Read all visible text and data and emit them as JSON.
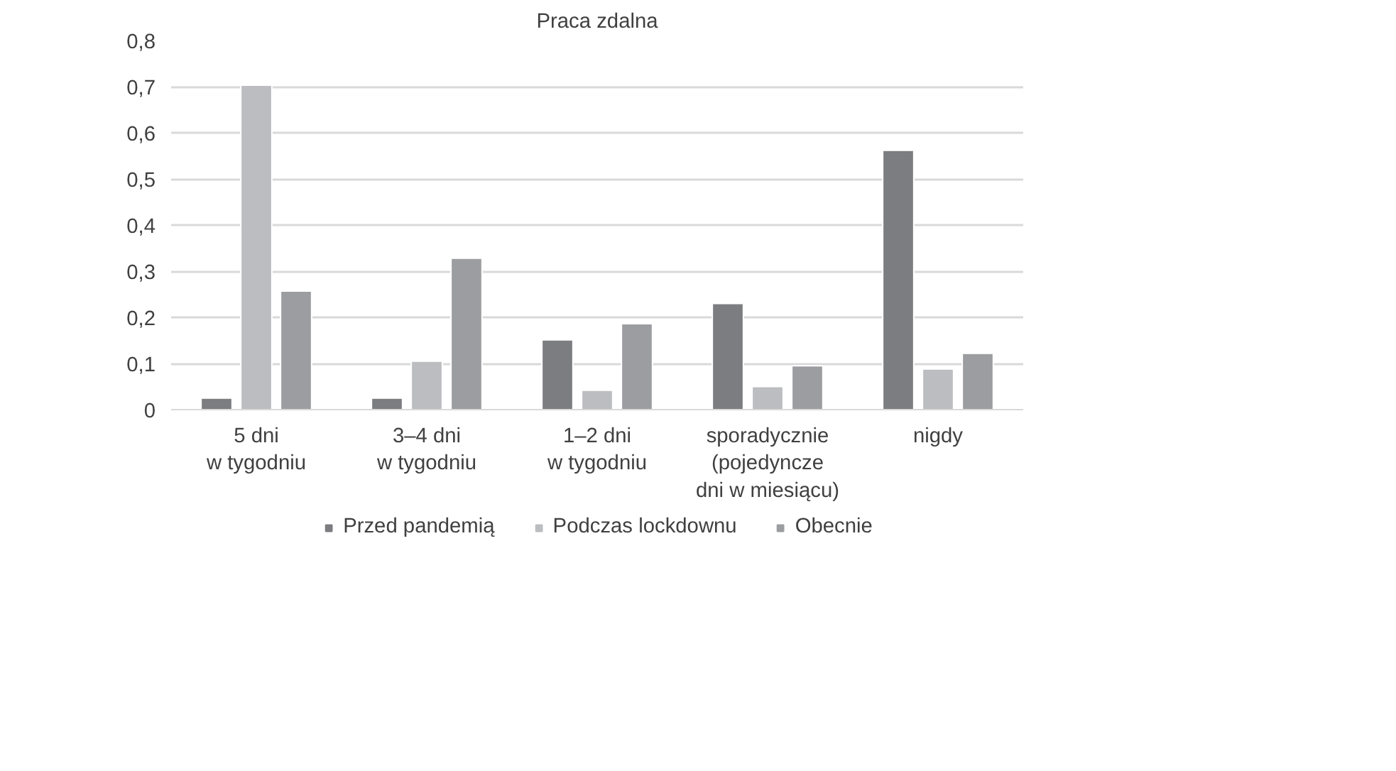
{
  "chart_data": {
    "type": "bar",
    "title": "Praca zdalna",
    "categories": [
      "5 dni\nw tygodniu",
      "3–4 dni\nw tygodniu",
      "1–2 dni\nw tygodniu",
      "sporadycznie\n(pojedyncze\ndni w miesiącu)",
      "nigdy"
    ],
    "series": [
      {
        "name": "Przed pandemią",
        "color": "#7c7d80",
        "values": [
          0.025,
          0.025,
          0.151,
          0.23,
          0.562
        ]
      },
      {
        "name": "Podczas lockdownu",
        "color": "#bcbdc0",
        "values": [
          0.703,
          0.105,
          0.042,
          0.05,
          0.088
        ]
      },
      {
        "name": "Obecnie",
        "color": "#9c9da0",
        "values": [
          0.257,
          0.328,
          0.186,
          0.095,
          0.122
        ]
      }
    ],
    "ylim": [
      0,
      0.8
    ],
    "yticks": [
      0,
      {
        "value": 0.1,
        "label": "0,1"
      },
      {
        "value": 0.2,
        "label": "0,2"
      },
      {
        "value": 0.3,
        "label": "0,3"
      },
      {
        "value": 0.4,
        "label": "0,4"
      },
      {
        "value": 0.5,
        "label": "0,5"
      },
      {
        "value": 0.6,
        "label": "0,6"
      },
      {
        "value": 0.7,
        "label": "0,7"
      },
      {
        "value": 0.8,
        "label": "0,8"
      }
    ],
    "grid": "y",
    "legend": "bottom"
  }
}
